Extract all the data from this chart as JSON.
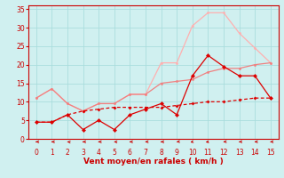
{
  "x": [
    0,
    1,
    2,
    3,
    4,
    5,
    6,
    7,
    8,
    9,
    10,
    11,
    12,
    13,
    14,
    15
  ],
  "line_pink_upper": [
    11,
    13.5,
    9.5,
    7.5,
    9.5,
    9.5,
    12,
    12,
    20.5,
    20.5,
    30.5,
    34,
    34,
    28.5,
    24.5,
    20.5
  ],
  "line_pink_lower": [
    11,
    13.5,
    9.5,
    7.5,
    9.5,
    9.5,
    12,
    12,
    15,
    15.5,
    16,
    18,
    19,
    19,
    20,
    20.5
  ],
  "line_red_jagged": [
    4.5,
    4.5,
    6.5,
    2.5,
    5,
    2.5,
    6.5,
    8,
    9.5,
    6.5,
    17,
    22.5,
    19.5,
    17,
    17,
    11
  ],
  "line_red_smooth": [
    4.5,
    4.5,
    6.5,
    7.5,
    8,
    8.5,
    8.5,
    8.5,
    8.5,
    9,
    9.5,
    10,
    10,
    10.5,
    11,
    11
  ],
  "color_pink_upper": "#ffb0b0",
  "color_pink_lower": "#f08080",
  "color_red": "#dd0000",
  "xlabel": "Vent moyen/en rafales ( km/h )",
  "ylim": [
    0,
    36
  ],
  "xlim": [
    -0.5,
    15.5
  ],
  "yticks": [
    0,
    5,
    10,
    15,
    20,
    25,
    30,
    35
  ],
  "xticks": [
    0,
    1,
    2,
    3,
    4,
    5,
    6,
    7,
    8,
    9,
    10,
    11,
    12,
    13,
    14,
    15
  ],
  "bg_color": "#d0f0f0",
  "grid_color": "#aadddd",
  "wind_angles": [
    270,
    270,
    250,
    270,
    270,
    260,
    270,
    275,
    270,
    290,
    310,
    300,
    280,
    275,
    275,
    275
  ]
}
